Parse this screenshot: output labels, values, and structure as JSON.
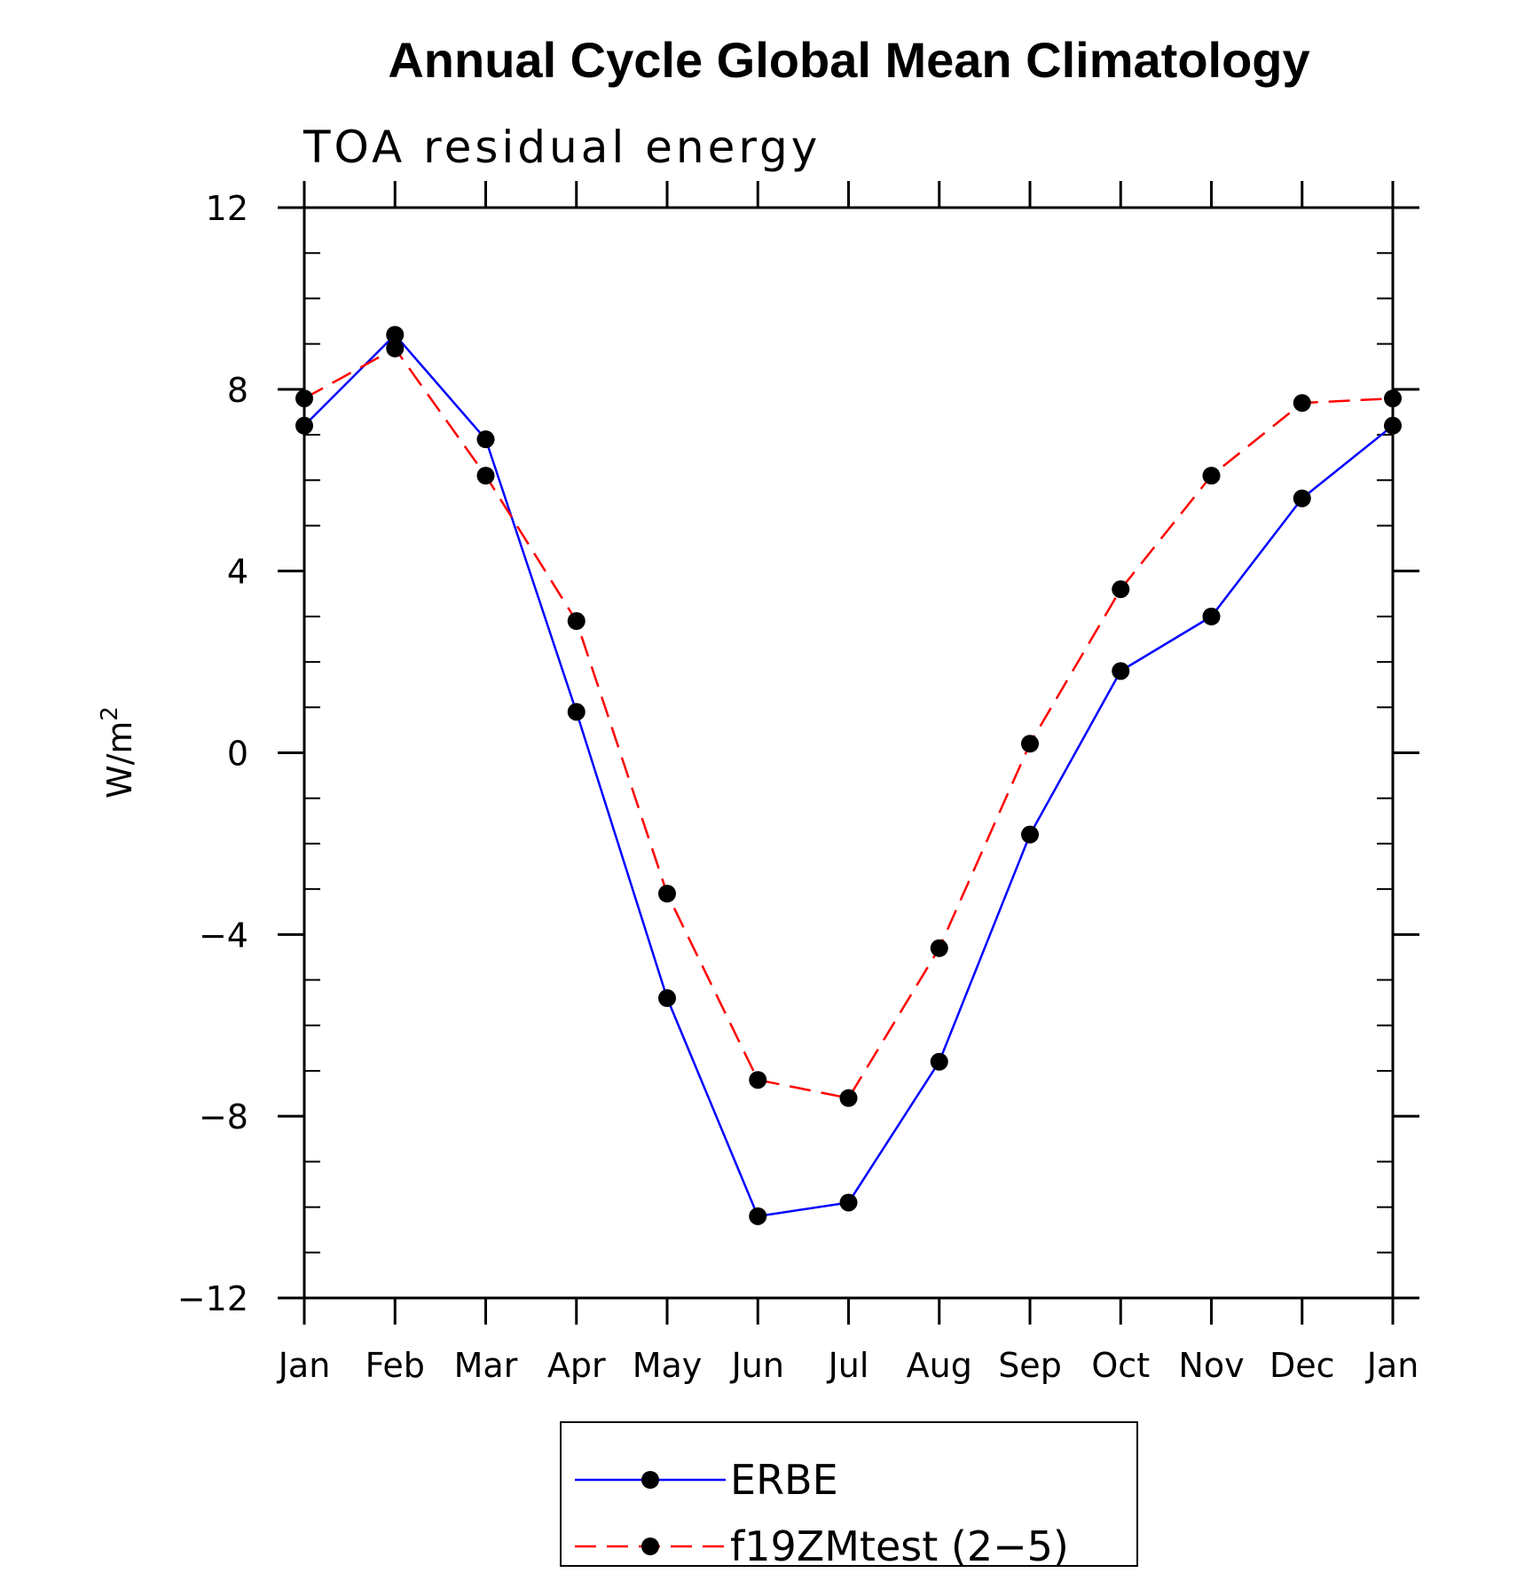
{
  "chart_data": {
    "type": "line",
    "title": "Annual Cycle Global Mean Climatology",
    "subtitle": "TOA residual energy",
    "ylabel": "W/m",
    "ylabel_superscript": "2",
    "xlabel": "",
    "categories": [
      "Jan",
      "Feb",
      "Mar",
      "Apr",
      "May",
      "Jun",
      "Jul",
      "Aug",
      "Sep",
      "Oct",
      "Nov",
      "Dec",
      "Jan"
    ],
    "ylim": [
      -12,
      12
    ],
    "yticks": [
      12,
      8,
      4,
      0,
      -4,
      -8,
      -12
    ],
    "ytick_labels": [
      "12",
      "8",
      "4",
      "0",
      "−4",
      "−8",
      "−12"
    ],
    "series": [
      {
        "name": "ERBE",
        "color": "#0000ff",
        "dash": "solid",
        "marker": "filled-circle",
        "values": [
          7.2,
          9.2,
          6.9,
          0.9,
          -5.4,
          -10.2,
          -9.9,
          -6.8,
          -1.8,
          1.8,
          3.0,
          5.6,
          7.2
        ]
      },
      {
        "name": "f19ZMtest (2−5)",
        "color": "#ff0000",
        "dash": "dashed",
        "marker": "filled-circle",
        "values": [
          7.8,
          8.9,
          6.1,
          2.9,
          -3.1,
          -7.2,
          -7.6,
          -4.3,
          0.2,
          3.6,
          6.1,
          7.7,
          7.8
        ]
      }
    ],
    "grid": false,
    "legend_position": "bottom-center"
  }
}
